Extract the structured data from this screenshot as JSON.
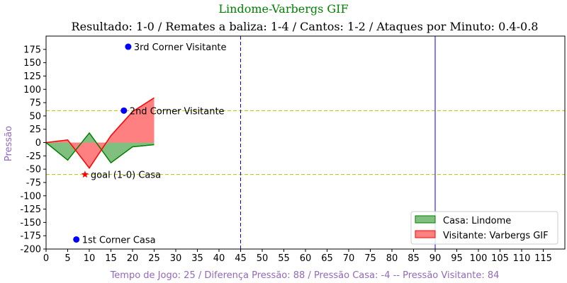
{
  "chart_data": {
    "type": "area",
    "title": "Lindome-Varbergs GIF",
    "subtitle": "Resultado: 1-0 / Remates a baliza: 1-4 / Cantos: 1-2 / Ataques por Minuto: 0.4-0.8",
    "xlabel": "Tempo de Jogo: 25 / Diferença Pressão: 88 / Pressão Casa: -4 -- Pressão Visitante: 84",
    "ylabel": "Pressão",
    "xlim": [
      0,
      120
    ],
    "ylim": [
      -200,
      200
    ],
    "xticks": [
      "0",
      "5",
      "10",
      "15",
      "20",
      "25",
      "30",
      "35",
      "40",
      "45",
      "50",
      "55",
      "60",
      "65",
      "70",
      "75",
      "80",
      "85",
      "90",
      "95",
      "100",
      "105",
      "110",
      "115"
    ],
    "yticks": [
      "-200",
      "-175",
      "-150",
      "-125",
      "-100",
      "-75",
      "-50",
      "-25",
      "0",
      "25",
      "50",
      "75",
      "100",
      "125",
      "150",
      "175"
    ],
    "x": [
      0,
      5,
      10,
      15,
      20,
      25
    ],
    "series": [
      {
        "name": "Casa: Lindome",
        "values": [
          0,
          -33,
          18,
          -38,
          -8,
          -4
        ],
        "color": "#008000",
        "fill": "#80bf80"
      },
      {
        "name": "Visitante: Varbergs GIF",
        "values": [
          0,
          5,
          -48,
          13,
          58,
          84
        ],
        "color": "#ff0000",
        "fill": "#ff8080"
      }
    ],
    "hlines": [
      {
        "y": 60,
        "color": "#bfbf00",
        "style": "dashed"
      },
      {
        "y": -60,
        "color": "#bfbf00",
        "style": "dashed"
      }
    ],
    "vlines": [
      {
        "x": 45,
        "color": "#0000ff",
        "style": "dashed"
      },
      {
        "x": 90,
        "color": "#0000ff",
        "style": "solid"
      }
    ],
    "annotations": [
      {
        "x": 19,
        "y": 180,
        "label": "3rd Corner Visitante",
        "marker": "circle",
        "color": "#0000ff"
      },
      {
        "x": 18,
        "y": 60,
        "label": "2nd Corner Visitante",
        "marker": "circle",
        "color": "#0000ff"
      },
      {
        "x": 9,
        "y": -60,
        "label": "goal (1-0) Casa",
        "marker": "star",
        "color": "#ff0000"
      },
      {
        "x": 7,
        "y": -182,
        "label": "1st Corner Casa",
        "marker": "circle",
        "color": "#0000ff"
      }
    ],
    "legend_position": "bottom-right",
    "grid": false
  }
}
